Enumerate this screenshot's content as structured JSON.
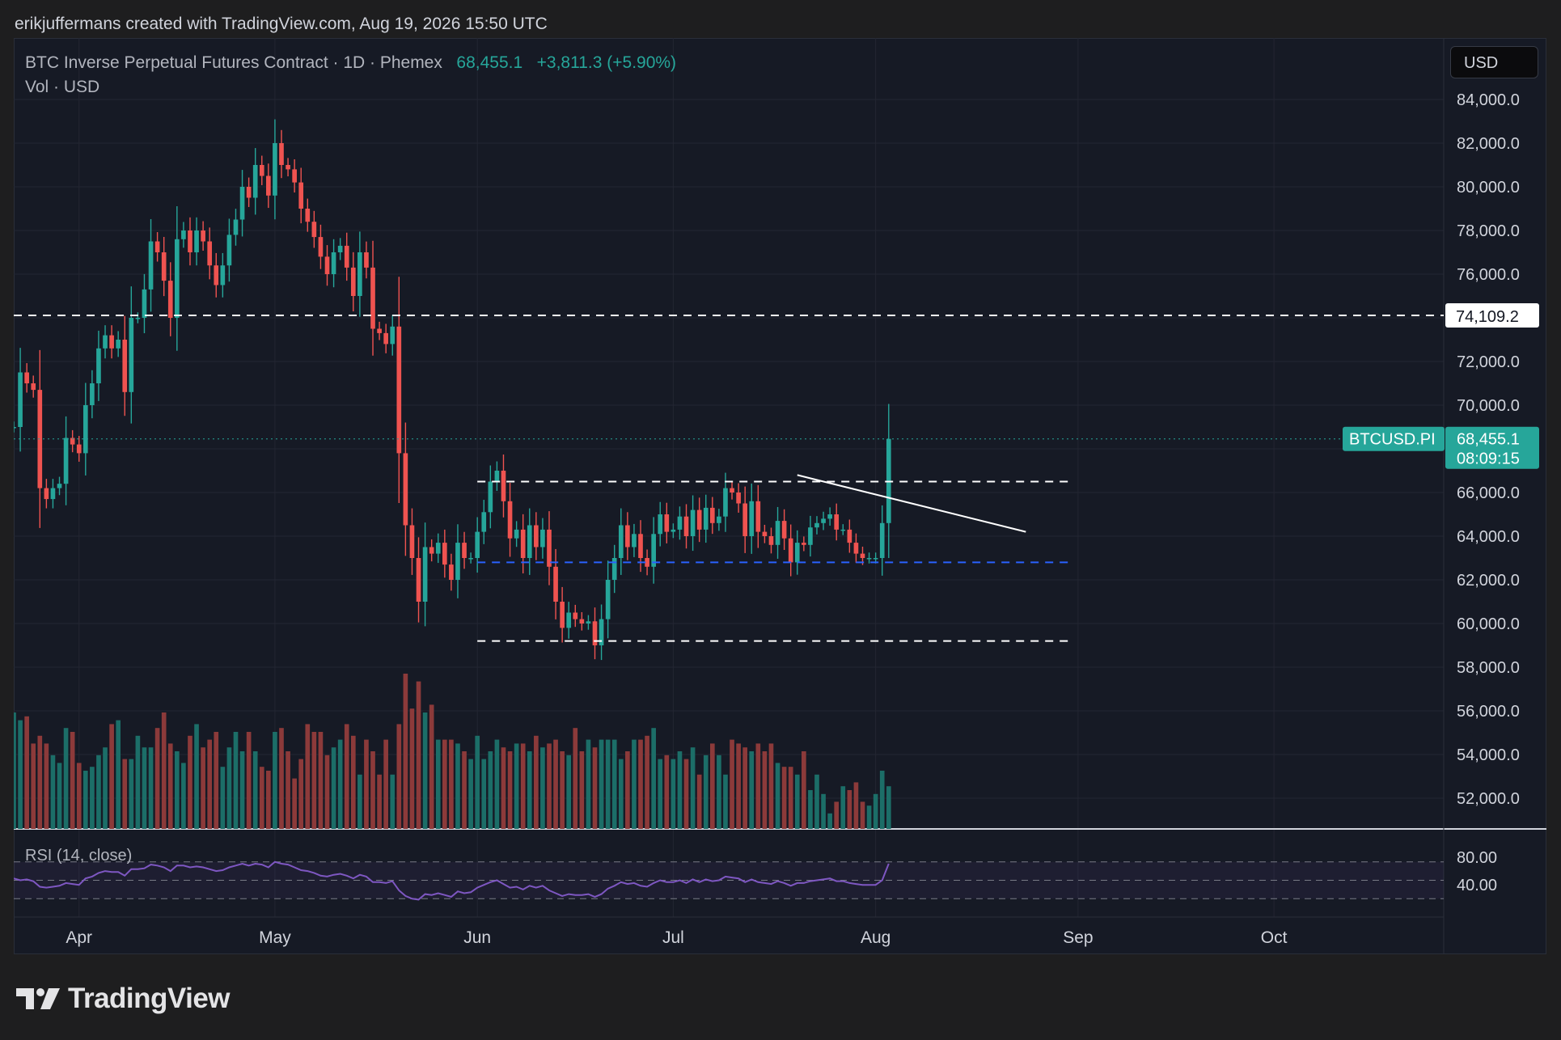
{
  "header": {
    "credit": "erikjuffermans created with TradingView.com, Aug 19, 2026 15:50 UTC"
  },
  "legend": {
    "symbol": "BTC Inverse Perpetual Futures Contract · 1D · Phemex",
    "price": "68,455.1",
    "change": "+3,811.3 (+5.90%)",
    "volume": "Vol · USD",
    "rsi": "RSI (14, close)"
  },
  "currency_button": "USD",
  "logo": {
    "text": "TradingView",
    "icon": "tradingview-logo-icon"
  },
  "colors": {
    "background": "#161a25",
    "up": "#26a69a",
    "down": "#ef5350",
    "rsi_line": "#7e57c2",
    "support_line": "#2962ff",
    "grid": "#232632"
  },
  "price_labels": {
    "ticks": [
      "84,000.0",
      "82,000.0",
      "80,000.0",
      "78,000.0",
      "76,000.0",
      "74,000.0",
      "72,000.0",
      "70,000.0",
      "68,000.0",
      "66,000.0",
      "64,000.0",
      "62,000.0",
      "60,000.0",
      "58,000.0",
      "56,000.0",
      "54,000.0",
      "52,000.0"
    ],
    "level_marker": "74,109.2",
    "symbol_tag": "BTCUSD.PI",
    "last_price": "68,455.1",
    "countdown": "08:09:15"
  },
  "rsi_labels": [
    "80.00",
    "40.00"
  ],
  "time_labels": [
    "Apr",
    "May",
    "Jun",
    "Jul",
    "Aug",
    "Sep",
    "Oct"
  ],
  "chart_data": {
    "type": "candlestick",
    "title": "BTC Inverse Perpetual Futures Contract · 1D · Phemex",
    "ylim": [
      50000,
      85500
    ],
    "y_scale": "linear",
    "grid": true,
    "x_range": [
      "2026-03-22",
      "2026-10-27"
    ],
    "month_ticks": [
      {
        "label": "Apr",
        "date": "2026-04-01"
      },
      {
        "label": "May",
        "date": "2026-05-01"
      },
      {
        "label": "Jun",
        "date": "2026-06-01"
      },
      {
        "label": "Jul",
        "date": "2026-07-01"
      },
      {
        "label": "Aug",
        "date": "2026-08-01"
      },
      {
        "label": "Sep",
        "date": "2026-09-01"
      },
      {
        "label": "Oct",
        "date": "2026-10-01"
      }
    ],
    "start_date": "2026-03-22",
    "close": [
      69000,
      71500,
      71000,
      70700,
      66200,
      65700,
      66200,
      66400,
      68500,
      68200,
      67800,
      70000,
      71000,
      72600,
      73200,
      72600,
      73000,
      70600,
      74000,
      74000,
      75300,
      77500,
      77000,
      75700,
      74000,
      77600,
      78000,
      77000,
      78000,
      77500,
      76400,
      75500,
      76400,
      77800,
      78500,
      80000,
      79500,
      81000,
      80500,
      79600,
      82000,
      81000,
      80800,
      80200,
      79000,
      78400,
      77700,
      76800,
      76000,
      77000,
      77300,
      76300,
      75000,
      77000,
      76300,
      73500,
      73300,
      72800,
      73600,
      67800,
      64500,
      63000,
      61000,
      63500,
      63200,
      63700,
      62700,
      62000,
      63700,
      63000,
      63000,
      64200,
      65100,
      66500,
      67000,
      65600,
      63900,
      64300,
      63000,
      64500,
      63500,
      64300,
      62600,
      61000,
      59800,
      60500,
      60200,
      60000,
      60100,
      59000,
      60200,
      62000,
      63000,
      64500,
      63500,
      64100,
      63000,
      62600,
      64100,
      65000,
      64200,
      64300,
      64900,
      64000,
      65200,
      64300,
      65300,
      64600,
      64900,
      66200,
      66000,
      65500,
      64000,
      65600,
      64200,
      64000,
      63600,
      64700,
      63900,
      62800,
      63700,
      63600,
      64400,
      64600,
      64800,
      65000,
      64300,
      64300,
      63700,
      63200,
      63000,
      63000,
      63000,
      64600,
      68455
    ],
    "volume_usd": [
      30,
      28,
      29,
      22,
      24,
      22,
      19,
      17,
      26,
      25,
      17,
      15,
      16,
      19,
      21,
      27,
      28,
      18,
      18,
      24,
      21,
      21,
      26,
      30,
      22,
      20,
      17,
      24,
      27,
      21,
      23,
      25,
      16,
      21,
      25,
      20,
      25,
      20,
      16,
      15,
      25,
      26,
      20,
      13,
      18,
      27,
      25,
      25,
      19,
      21,
      23,
      27,
      24,
      14,
      23,
      20,
      14,
      23,
      14,
      27,
      40,
      31,
      38,
      30,
      32,
      23,
      23,
      23,
      22,
      20,
      18,
      24,
      18,
      20,
      23,
      21,
      20,
      22,
      22,
      20,
      24,
      21,
      22,
      23,
      20,
      19,
      26,
      20,
      23,
      21,
      23,
      23,
      23,
      18,
      20,
      23,
      23,
      24,
      26,
      18,
      19,
      18,
      20,
      18,
      21,
      14,
      19,
      22,
      19,
      14,
      23,
      22,
      21,
      20,
      22,
      20,
      22,
      17,
      16,
      16,
      14,
      20,
      10,
      14,
      9,
      4,
      7,
      11,
      10,
      12,
      7,
      6,
      9,
      15,
      11
    ],
    "rsi_14": [
      52,
      50,
      51,
      49,
      43,
      42,
      43,
      44,
      47,
      46,
      45,
      52,
      54,
      58,
      60,
      59,
      59,
      55,
      62,
      62,
      63,
      67,
      66,
      64,
      60,
      66,
      66,
      64,
      65,
      64,
      62,
      60,
      61,
      64,
      66,
      68,
      66,
      68,
      67,
      64,
      70,
      68,
      67,
      64,
      61,
      60,
      58,
      55,
      54,
      56,
      57,
      55,
      52,
      56,
      54,
      48,
      48,
      47,
      49,
      39,
      33,
      30,
      29,
      35,
      34,
      36,
      34,
      32,
      38,
      36,
      37,
      42,
      45,
      48,
      50,
      46,
      42,
      43,
      40,
      44,
      42,
      44,
      39,
      36,
      33,
      35,
      34,
      34,
      35,
      32,
      35,
      41,
      44,
      48,
      46,
      47,
      44,
      43,
      47,
      50,
      48,
      48,
      50,
      47,
      51,
      48,
      51,
      49,
      50,
      54,
      53,
      52,
      48,
      51,
      48,
      47,
      46,
      49,
      47,
      44,
      47,
      47,
      49,
      50,
      51,
      52,
      49,
      49,
      47,
      46,
      45,
      45,
      45,
      50,
      68
    ],
    "annotations": [
      {
        "type": "horizontal",
        "price": 74109.2,
        "style": "dashed",
        "color": "#ffffff"
      },
      {
        "type": "horizontal",
        "price": 66500,
        "style": "dashed",
        "color": "#ffffff",
        "from": "2026-06-01",
        "to": "2026-08-31"
      },
      {
        "type": "horizontal",
        "price": 62800,
        "style": "dashed",
        "color": "#2962ff",
        "from": "2026-06-01",
        "to": "2026-08-31"
      },
      {
        "type": "horizontal",
        "price": 59200,
        "style": "dashed",
        "color": "#ffffff",
        "from": "2026-06-01",
        "to": "2026-08-31"
      },
      {
        "type": "trendline",
        "from": [
          "2026-07-20",
          66800
        ],
        "to": [
          "2026-08-24",
          64200
        ],
        "color": "#ffffff"
      }
    ],
    "last_price": 68455.1,
    "price_change": "+3,811.3 (+5.90%)",
    "rsi_bands": [
      70,
      50,
      30
    ]
  }
}
